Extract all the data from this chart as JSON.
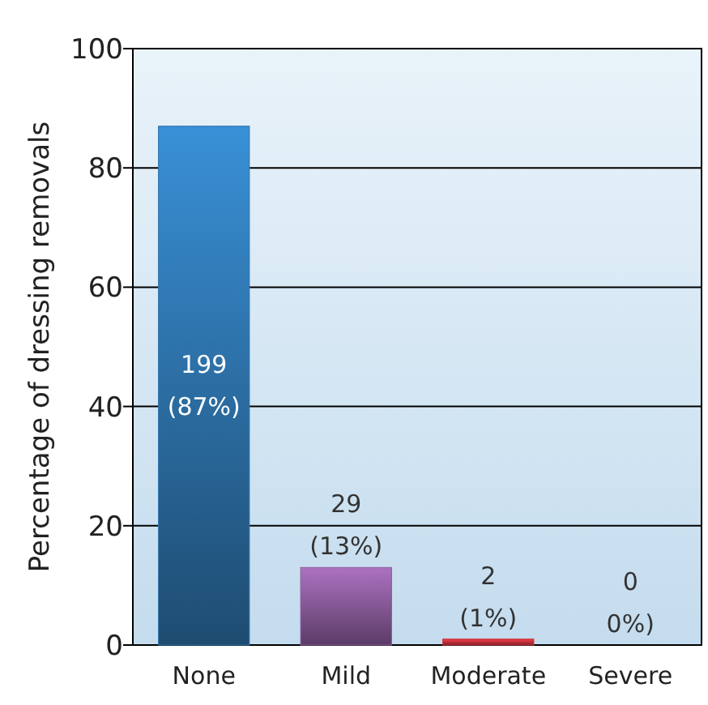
{
  "chart_data": {
    "type": "bar",
    "ylabel": "Percentage of dressing removals",
    "categories": [
      "None",
      "Mild",
      "Moderate",
      "Severe"
    ],
    "values": [
      87,
      13,
      1,
      0
    ],
    "colors": [
      "#2e74ad",
      "#8b5c9c",
      "#c8323c",
      "#b03040"
    ],
    "value_labels": [
      "199\n(87%)",
      "29\n(13%)",
      "2\n(1%)",
      "0\n0%)"
    ],
    "ylim": [
      0,
      100
    ],
    "yticks": [
      0,
      20,
      40,
      60,
      80,
      100
    ],
    "grid": "y"
  }
}
